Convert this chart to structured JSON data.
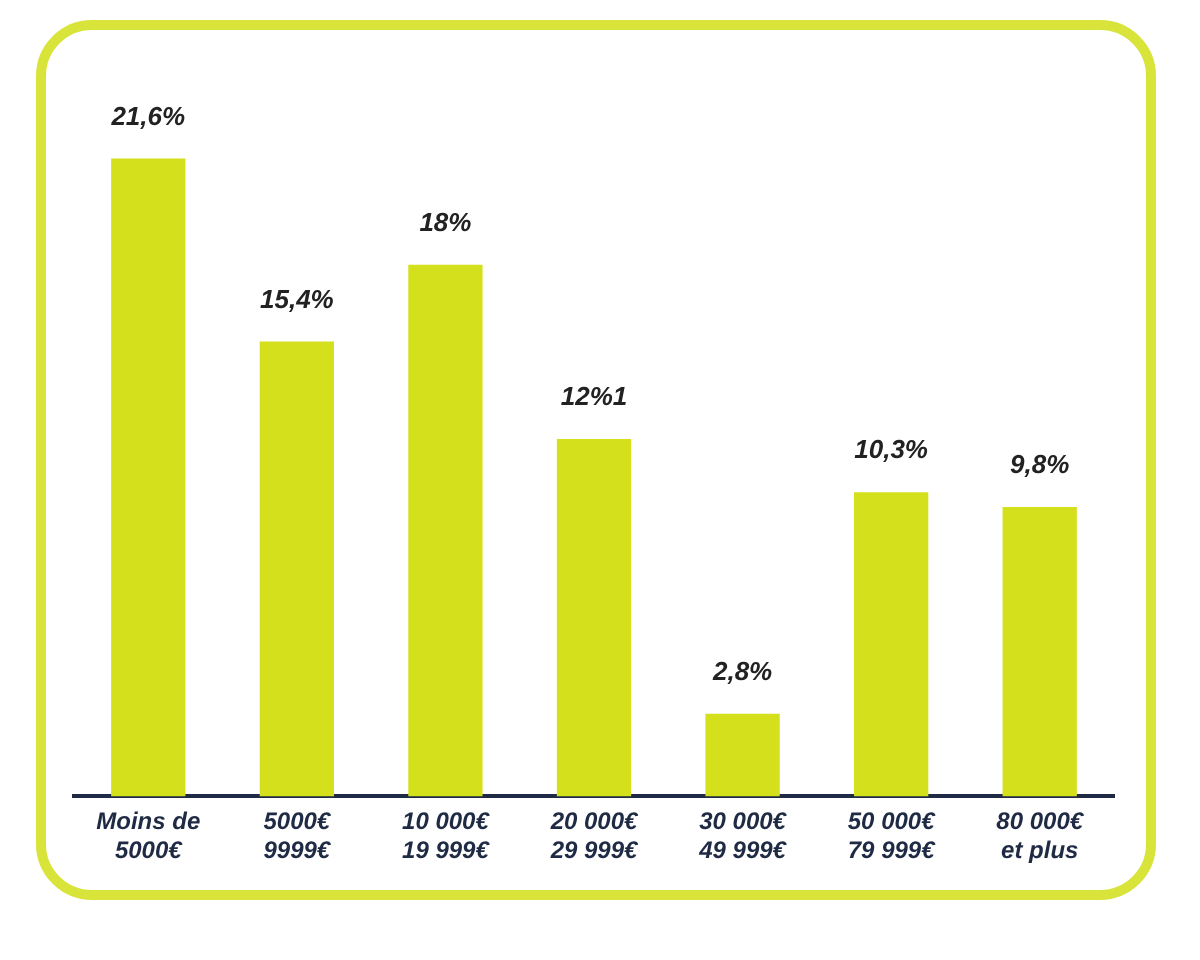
{
  "chart_data": {
    "type": "bar",
    "categories": [
      "Moins de\n5000€",
      "5000€\n9999€",
      "10 000€\n19 999€",
      "20 000€\n29 999€",
      "30 000€\n49 999€",
      "50 000€\n79 999€",
      "80 000€\net plus"
    ],
    "values": [
      21.6,
      15.4,
      18,
      12.1,
      2.8,
      10.3,
      9.8
    ],
    "value_labels": [
      "21,6%",
      "15,4%",
      "18%",
      "12%1",
      "2,8%",
      "10,3%",
      "9,8%"
    ],
    "color": "#d4e01c",
    "grid": false,
    "legend": false
  }
}
